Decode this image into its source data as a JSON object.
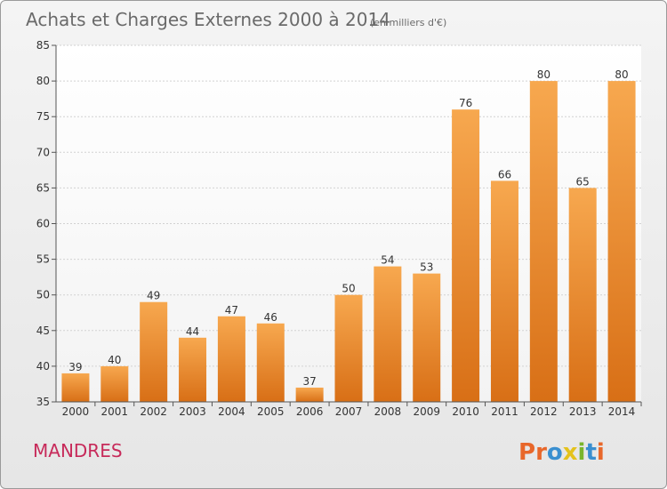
{
  "chart_data": {
    "type": "bar",
    "title": "Achats et Charges Externes 2000 à 2014",
    "subtitle": "(en milliers d'€)",
    "categories": [
      "2000",
      "2001",
      "2002",
      "2003",
      "2004",
      "2005",
      "2006",
      "2007",
      "2008",
      "2009",
      "2010",
      "2011",
      "2012",
      "2013",
      "2014"
    ],
    "values": [
      39,
      40,
      49,
      44,
      47,
      46,
      37,
      50,
      54,
      53,
      76,
      66,
      80,
      65,
      80
    ],
    "ylim": [
      35,
      85
    ],
    "yticks": [
      35,
      40,
      45,
      50,
      55,
      60,
      65,
      70,
      75,
      80,
      85
    ],
    "grid": true,
    "bar_color": "#ee8b2e"
  },
  "commune": "MANDRES",
  "logo": {
    "letters": [
      "P",
      "r",
      "o",
      "x",
      "i",
      "t",
      "i"
    ],
    "colors": [
      "#e8672a",
      "#e8672a",
      "#3a8fd0",
      "#e4c21c",
      "#7ab52b",
      "#3a8fd0",
      "#e8672a"
    ]
  }
}
